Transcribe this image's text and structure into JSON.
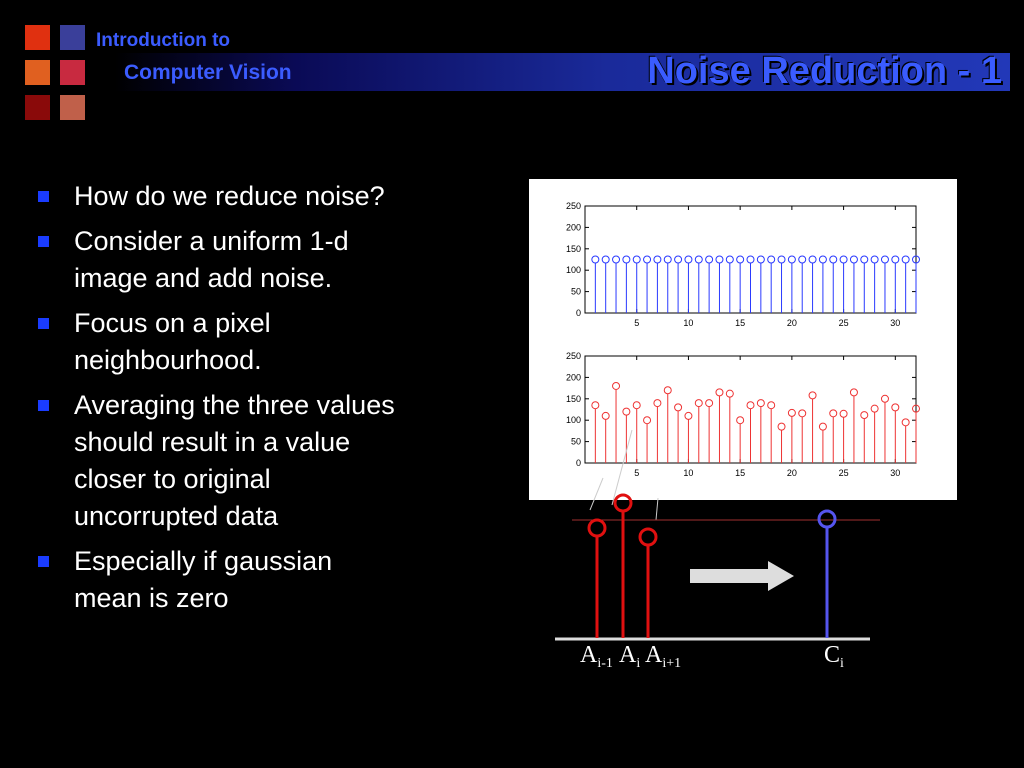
{
  "header": {
    "course_line1": "Introduction to",
    "course_line2": "Computer Vision",
    "title": "Noise Reduction - 1"
  },
  "logo_colors": [
    "#e03010",
    "#3a3f9a",
    "#e06020",
    "#c82a40",
    "#8a0a0a",
    "#c0604a"
  ],
  "bullets": [
    "How do we reduce noise?",
    "Consider a uniform 1-d image and add noise.",
    "Focus on a pixel neighbourhood.",
    "Averaging the three values should result in a value closer to original uncorrupted data",
    "Especially if gaussian mean is zero"
  ],
  "chart_data": [
    {
      "type": "stem",
      "color": "#2a3aff",
      "xlim": [
        0,
        32
      ],
      "ylim": [
        0,
        250
      ],
      "xticks": [
        5,
        10,
        15,
        20,
        25,
        30
      ],
      "yticks": [
        0,
        50,
        100,
        150,
        200,
        250
      ],
      "x": [
        1,
        2,
        3,
        4,
        5,
        6,
        7,
        8,
        9,
        10,
        11,
        12,
        13,
        14,
        15,
        16,
        17,
        18,
        19,
        20,
        21,
        22,
        23,
        24,
        25,
        26,
        27,
        28,
        29,
        30,
        31,
        32
      ],
      "y": [
        125,
        125,
        125,
        125,
        125,
        125,
        125,
        125,
        125,
        125,
        125,
        125,
        125,
        125,
        125,
        125,
        125,
        125,
        125,
        125,
        125,
        125,
        125,
        125,
        125,
        125,
        125,
        125,
        125,
        125,
        125,
        125
      ]
    },
    {
      "type": "stem",
      "color": "#ee3333",
      "xlim": [
        0,
        32
      ],
      "ylim": [
        0,
        250
      ],
      "xticks": [
        5,
        10,
        15,
        20,
        25,
        30
      ],
      "yticks": [
        0,
        50,
        100,
        150,
        200,
        250
      ],
      "x": [
        1,
        2,
        3,
        4,
        5,
        6,
        7,
        8,
        9,
        10,
        11,
        12,
        13,
        14,
        15,
        16,
        17,
        18,
        19,
        20,
        21,
        22,
        23,
        24,
        25,
        26,
        27,
        28,
        29,
        30,
        31,
        32
      ],
      "y": [
        135,
        110,
        180,
        120,
        135,
        100,
        140,
        170,
        130,
        110,
        140,
        140,
        165,
        162,
        100,
        135,
        140,
        135,
        85,
        117,
        116,
        158,
        85,
        116,
        115,
        165,
        112,
        127,
        150,
        130,
        95,
        127
      ]
    }
  ],
  "diagram": {
    "labels": {
      "a_prev": {
        "base": "A",
        "sub": "i-1"
      },
      "a_curr": {
        "base": "A",
        "sub": "i"
      },
      "a_next": {
        "base": "A",
        "sub": "i+1"
      },
      "c_curr": {
        "base": "C",
        "sub": "i"
      }
    }
  }
}
